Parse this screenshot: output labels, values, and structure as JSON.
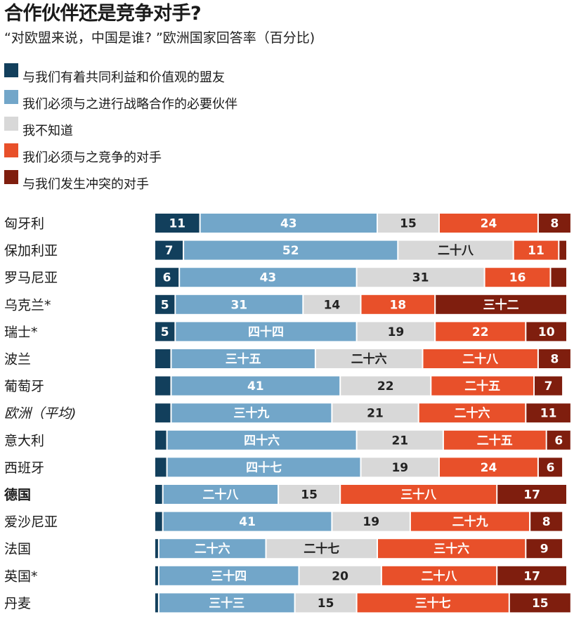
{
  "header": {
    "title": "合作伙伴还是竞争对手?",
    "subtitle": "“对欧盟来说，中国是谁? ”欧洲国家回答率（百分比)"
  },
  "legend": [
    {
      "label": "与我们有着共同利益和价值观的盟友",
      "color": "#123f5c"
    },
    {
      "label": "我们必须与之进行战略合作的必要伙伴",
      "color": "#72a6c9"
    },
    {
      "label": "我不知道",
      "color": "#d8d8d8"
    },
    {
      "label": "我们必须与之竞争的对手",
      "color": "#e8502a"
    },
    {
      "label": "与我们发生冲突的对手",
      "color": "#7f1e0e"
    }
  ],
  "chart_data": {
    "type": "bar",
    "orientation": "horizontal",
    "stacked": true,
    "title": "合作伙伴还是竞争对手?",
    "subtitle": "“对欧盟来说，中国是谁? ”欧洲国家回答率（百分比)",
    "categories": [
      {
        "label": "匈牙利",
        "style": "normal"
      },
      {
        "label": "保加利亚",
        "style": "normal"
      },
      {
        "label": "罗马尼亚",
        "style": "normal"
      },
      {
        "label": "乌克兰*",
        "style": "normal"
      },
      {
        "label": "瑞士*",
        "style": "normal"
      },
      {
        "label": "波兰",
        "style": "normal"
      },
      {
        "label": "葡萄牙",
        "style": "normal"
      },
      {
        "label": "欧洲（平均)",
        "style": "italic"
      },
      {
        "label": "意大利",
        "style": "normal"
      },
      {
        "label": "西班牙",
        "style": "normal"
      },
      {
        "label": "德国",
        "style": "bold"
      },
      {
        "label": "爱沙尼亚",
        "style": "normal"
      },
      {
        "label": "法国",
        "style": "normal"
      },
      {
        "label": "英国*",
        "style": "normal"
      },
      {
        "label": "丹麦",
        "style": "normal"
      }
    ],
    "series": [
      {
        "name": "与我们有着共同利益和价值观的盟友",
        "color": "#123f5c",
        "values": [
          11,
          7,
          6,
          5,
          5,
          4,
          4,
          4,
          3,
          3,
          2,
          2,
          1,
          1,
          1
        ],
        "labels": [
          "11",
          "7",
          "6",
          "5",
          "5",
          "",
          "",
          "",
          "",
          "",
          "",
          "",
          "",
          "",
          ""
        ]
      },
      {
        "name": "我们必须与之进行战略合作的必要伙伴",
        "color": "#72a6c9",
        "values": [
          43,
          52,
          43,
          31,
          44,
          35,
          41,
          39,
          46,
          47,
          28,
          41,
          26,
          34,
          33
        ],
        "labels": [
          "43",
          "52",
          "43",
          "31",
          "四十四",
          "三十五",
          "41",
          "三十九",
          "四十六",
          "四十七",
          "二十八",
          "41",
          "二十六",
          "三十四",
          "三十三"
        ]
      },
      {
        "name": "我不知道",
        "color": "#d8d8d8",
        "values": [
          15,
          28,
          31,
          14,
          19,
          26,
          22,
          21,
          21,
          19,
          15,
          19,
          27,
          20,
          15
        ],
        "labels": [
          "15",
          "二十八",
          "31",
          "14",
          "19",
          "二十六",
          "22",
          "21",
          "21",
          "19",
          "15",
          "19",
          "二十七",
          "20",
          "15"
        ]
      },
      {
        "name": "我们必须与之竞争的对手",
        "color": "#e8502a",
        "values": [
          24,
          11,
          16,
          18,
          22,
          28,
          25,
          26,
          25,
          24,
          38,
          29,
          36,
          28,
          37
        ],
        "labels": [
          "24",
          "11",
          "16",
          "18",
          "22",
          "二十八",
          "二十五",
          "二十六",
          "二十五",
          "24",
          "三十八",
          "二十九",
          "三十六",
          "二十八",
          "三十七"
        ]
      },
      {
        "name": "与我们发生冲突的对手",
        "color": "#7f1e0e",
        "values": [
          8,
          2,
          4,
          32,
          10,
          8,
          7,
          11,
          6,
          6,
          17,
          8,
          9,
          17,
          15
        ],
        "labels": [
          "8",
          "",
          "",
          "三十二",
          "10",
          "8",
          "7",
          "11",
          "6",
          "6",
          "17",
          "8",
          "9",
          "17",
          "15"
        ]
      }
    ],
    "xlim": [
      0,
      100
    ],
    "xlabel": "",
    "ylabel": "",
    "grid": false,
    "legend_position": "top"
  }
}
